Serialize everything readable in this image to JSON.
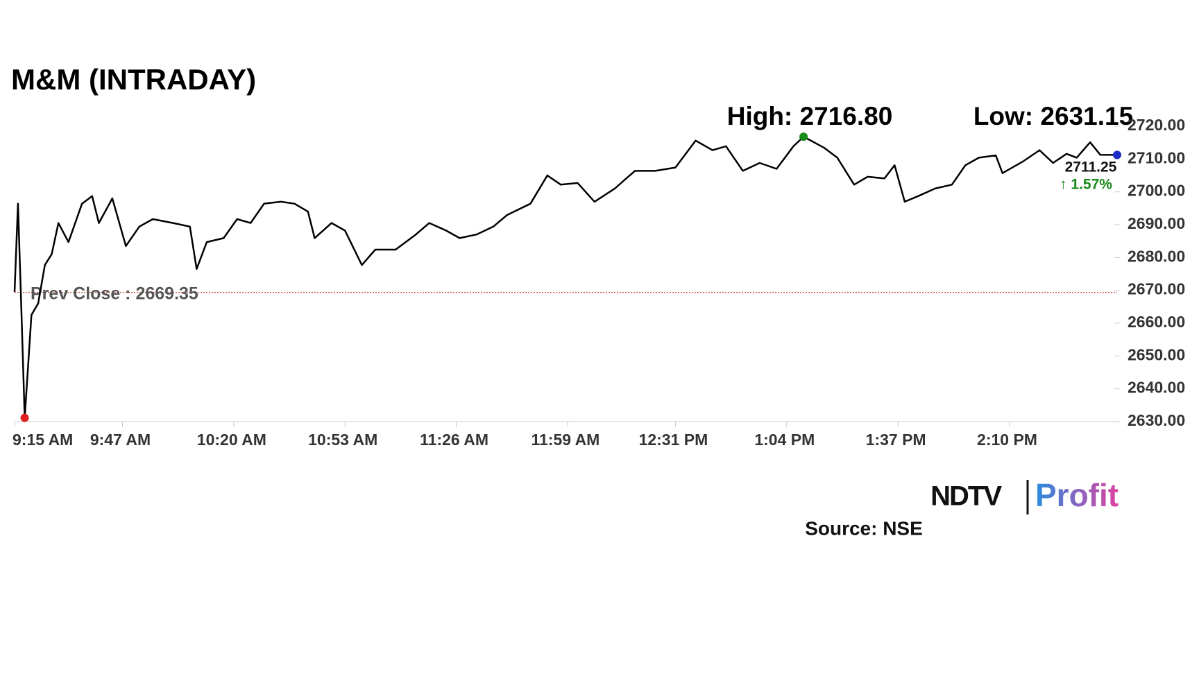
{
  "chart_data": {
    "type": "line",
    "title": "M&M (INTRADAY)",
    "high_label": "High: 2716.80",
    "low_label": "Low: 2631.15",
    "prev_close": {
      "value": 2669.35,
      "label": "Prev Close : 2669.35"
    },
    "last_label": "2711.25",
    "change_label": "↑ 1.57%",
    "source": "Source: NSE",
    "logo": [
      "NDTV",
      "Profit"
    ],
    "x": [
      555,
      556,
      557,
      558,
      560,
      562,
      564,
      566,
      568,
      571,
      575,
      578,
      580,
      584,
      588,
      592,
      596,
      602,
      607,
      609,
      612,
      617,
      621,
      625,
      629,
      634,
      638,
      642,
      644,
      649,
      653,
      658,
      662,
      668,
      674,
      678,
      683,
      687,
      692,
      697,
      701,
      708,
      713,
      717,
      722,
      727,
      733,
      739,
      745,
      751,
      757,
      762,
      766,
      771,
      776,
      781,
      786,
      789,
      795,
      799,
      804,
      808,
      813,
      816,
      819,
      823,
      828,
      833,
      837,
      841,
      846,
      848,
      854,
      859,
      863,
      867,
      870,
      874,
      877,
      882
    ],
    "series": [
      {
        "name": "M&M",
        "color": "#000000",
        "values": [
          2669.5,
          2696.4,
          2664.8,
          2631.15,
          2662.5,
          2666,
          2677.7,
          2681,
          2690.5,
          2684.7,
          2696.4,
          2698.7,
          2690.5,
          2698,
          2683.5,
          2689.4,
          2691.7,
          2690.5,
          2689.4,
          2676.5,
          2684.7,
          2685.9,
          2691.7,
          2690.5,
          2696.4,
          2697,
          2696.4,
          2694,
          2685.9,
          2690.5,
          2688.2,
          2677.7,
          2682.4,
          2682.4,
          2687,
          2690.5,
          2688.2,
          2685.9,
          2687,
          2689.4,
          2692.9,
          2696.4,
          2705,
          2702.2,
          2702.7,
          2697,
          2701,
          2706.4,
          2706.4,
          2707.4,
          2715.6,
          2712.7,
          2713.9,
          2706.4,
          2708.8,
          2707,
          2713.9,
          2716.8,
          2713.5,
          2710.4,
          2702.2,
          2704.6,
          2704.1,
          2708.1,
          2697,
          2698.7,
          2701,
          2702.2,
          2708.1,
          2710.4,
          2711.1,
          2705.7,
          2709.2,
          2712.7,
          2708.8,
          2711.6,
          2710.4,
          2715.1,
          2711.3,
          2711.25
        ]
      }
    ],
    "xlim": [
      555,
      882
    ],
    "xticks": [
      {
        "value": 555,
        "label": "9:15 AM"
      },
      {
        "value": 587,
        "label": "9:47 AM"
      },
      {
        "value": 620,
        "label": "10:20 AM"
      },
      {
        "value": 653,
        "label": "10:53 AM"
      },
      {
        "value": 686,
        "label": "11:26 AM"
      },
      {
        "value": 719,
        "label": "11:59 AM"
      },
      {
        "value": 751,
        "label": "12:31 PM"
      },
      {
        "value": 784,
        "label": "1:04 PM"
      },
      {
        "value": 817,
        "label": "1:37 PM"
      },
      {
        "value": 850,
        "label": "2:10 PM"
      }
    ],
    "ylim": [
      2630,
      2720
    ],
    "yticks": [
      {
        "value": 2630,
        "label": "2630.00"
      },
      {
        "value": 2640,
        "label": "2640.00"
      },
      {
        "value": 2650,
        "label": "2650.00"
      },
      {
        "value": 2660,
        "label": "2660.00"
      },
      {
        "value": 2670,
        "label": "2670.00"
      },
      {
        "value": 2680,
        "label": "2680.00"
      },
      {
        "value": 2690,
        "label": "2690.00"
      },
      {
        "value": 2700,
        "label": "2700.00"
      },
      {
        "value": 2710,
        "label": "2710.00"
      },
      {
        "value": 2720,
        "label": "2720.00"
      }
    ],
    "high_index": 57,
    "low_index": 3
  }
}
